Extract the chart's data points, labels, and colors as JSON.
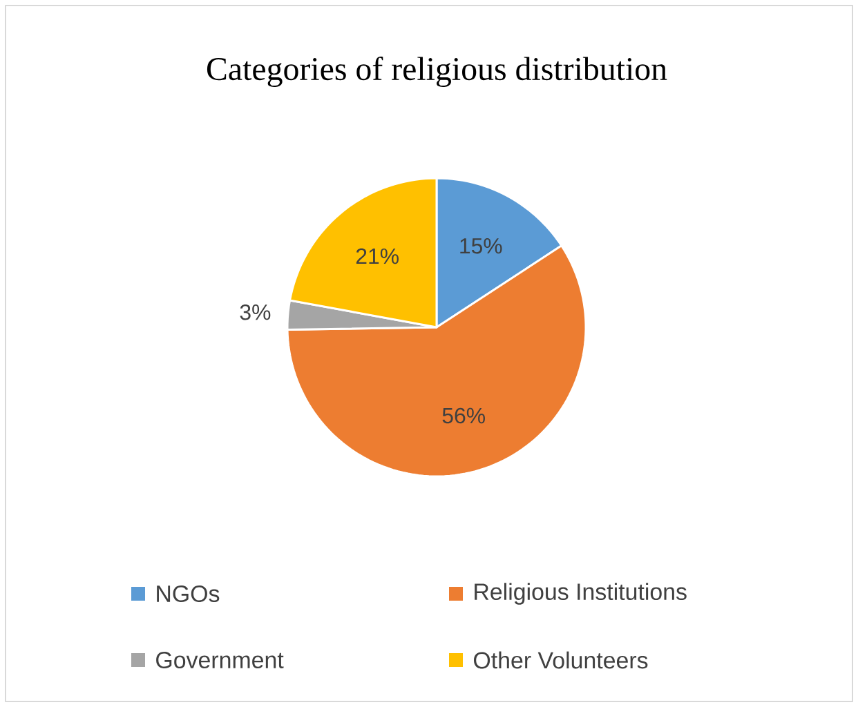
{
  "chart_data": {
    "type": "pie",
    "title": "Categories of religious distribution",
    "categories": [
      "NGOs",
      "Religious Institutions",
      "Government",
      "Other Volunteers"
    ],
    "values": [
      15,
      56,
      3,
      21
    ],
    "colors": [
      "#5b9bd5",
      "#ed7d31",
      "#a5a5a5",
      "#ffc000"
    ],
    "value_labels": [
      "15%",
      "56%",
      "3%",
      "21%"
    ],
    "legend": "bottom"
  }
}
